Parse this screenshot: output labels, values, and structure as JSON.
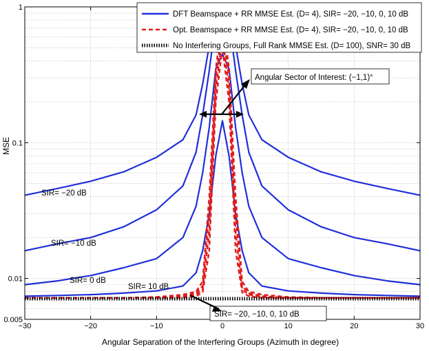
{
  "chart_data": {
    "type": "line",
    "title": "",
    "xlabel": "Angular Separation of the Interfering Groups (Azimuth in degree)",
    "ylabel": "MSE",
    "xlim": [
      -30,
      30
    ],
    "ylim": [
      0.005,
      1
    ],
    "yscale": "log",
    "xticks": [
      -30,
      -20,
      -10,
      0,
      10,
      20,
      30
    ],
    "xtick_labels": [
      "−30",
      "−20",
      "−10",
      "0",
      "10",
      "20",
      "30"
    ],
    "yticks": [
      0.005,
      0.01,
      0.1,
      1
    ],
    "ytick_labels": [
      "0.005",
      "0.01",
      "0.1",
      "1"
    ],
    "grid": true,
    "legend_position": "top-right",
    "legend": [
      "DFT Beamspace + RR MMSE Est. (D= 4), SIR= −20, −10, 0, 10 dB",
      "Opt. Beamspace + RR MMSE Est. (D= 4), SIR= −20, −10, 0, 10 dB",
      "No Interfering Groups, Full Rank MMSE Est. (D= 100), SNR= 30 dB"
    ],
    "x": [
      -30,
      -25,
      -20,
      -15,
      -10,
      -6,
      -4,
      -3,
      -2,
      -1,
      0,
      1,
      2,
      3,
      4,
      6,
      10,
      15,
      20,
      25,
      30
    ],
    "series": [
      {
        "name": "DFT SIR= −20 dB",
        "style": "solid-blue",
        "values": [
          0.041,
          0.046,
          0.052,
          0.061,
          0.078,
          0.105,
          0.16,
          0.27,
          0.52,
          1.0,
          1.0,
          1.0,
          0.52,
          0.27,
          0.16,
          0.105,
          0.078,
          0.061,
          0.052,
          0.046,
          0.041
        ]
      },
      {
        "name": "DFT SIR= −10 dB",
        "style": "solid-blue",
        "values": [
          0.016,
          0.018,
          0.02,
          0.024,
          0.032,
          0.048,
          0.085,
          0.16,
          0.34,
          0.8,
          1.0,
          0.8,
          0.34,
          0.16,
          0.085,
          0.048,
          0.032,
          0.024,
          0.02,
          0.018,
          0.016
        ]
      },
      {
        "name": "DFT SIR= 0 dB",
        "style": "solid-blue",
        "values": [
          0.009,
          0.0096,
          0.0105,
          0.012,
          0.014,
          0.02,
          0.034,
          0.06,
          0.13,
          0.35,
          0.45,
          0.35,
          0.13,
          0.06,
          0.034,
          0.02,
          0.014,
          0.012,
          0.0105,
          0.0096,
          0.009
        ]
      },
      {
        "name": "DFT SIR= 10 dB",
        "style": "solid-blue",
        "values": [
          0.0074,
          0.0075,
          0.0076,
          0.0078,
          0.0081,
          0.0088,
          0.011,
          0.016,
          0.03,
          0.08,
          0.145,
          0.08,
          0.03,
          0.016,
          0.011,
          0.0088,
          0.0081,
          0.0078,
          0.0076,
          0.0075,
          0.0074
        ]
      },
      {
        "name": "Opt. SIR= −20 dB",
        "style": "dashed-red",
        "values": [
          0.0072,
          0.0072,
          0.0072,
          0.0072,
          0.0073,
          0.0076,
          0.008,
          0.0095,
          0.04,
          0.35,
          0.85,
          0.35,
          0.04,
          0.0095,
          0.008,
          0.0076,
          0.0073,
          0.0072,
          0.0072,
          0.0072,
          0.0072
        ]
      },
      {
        "name": "Opt. SIR= −10 dB",
        "style": "dashed-red",
        "values": [
          0.0072,
          0.0072,
          0.0072,
          0.0072,
          0.0072,
          0.0074,
          0.0078,
          0.0088,
          0.03,
          0.3,
          0.7,
          0.3,
          0.03,
          0.0088,
          0.0078,
          0.0074,
          0.0072,
          0.0072,
          0.0072,
          0.0072,
          0.0072
        ]
      },
      {
        "name": "Opt. SIR= 0 dB",
        "style": "dashed-red",
        "values": [
          0.0072,
          0.0072,
          0.0072,
          0.0072,
          0.0072,
          0.0073,
          0.0076,
          0.0083,
          0.022,
          0.25,
          0.6,
          0.25,
          0.022,
          0.0083,
          0.0076,
          0.0073,
          0.0072,
          0.0072,
          0.0072,
          0.0072,
          0.0072
        ]
      },
      {
        "name": "Opt. SIR= 10 dB",
        "style": "dashed-red",
        "values": [
          0.0072,
          0.0072,
          0.0072,
          0.0072,
          0.0072,
          0.0072,
          0.0074,
          0.0079,
          0.016,
          0.2,
          0.5,
          0.2,
          0.016,
          0.0079,
          0.0074,
          0.0072,
          0.0072,
          0.0072,
          0.0072,
          0.0072,
          0.0072
        ]
      },
      {
        "name": "No Interfering Groups",
        "style": "dotted-black",
        "values": [
          0.0071,
          0.0071,
          0.0071,
          0.0071,
          0.0071,
          0.0071,
          0.0071,
          0.0071,
          0.0071,
          0.0071,
          0.0071,
          0.0071,
          0.0071,
          0.0071,
          0.0071,
          0.0071,
          0.0071,
          0.0071,
          0.0071,
          0.0071,
          0.0071
        ]
      }
    ],
    "annotations": [
      {
        "text": "Angular Sector of Interest: (−1,1)°",
        "boxed": true
      },
      {
        "text": "SIR= −20, −10, 0, 10 dB",
        "boxed": true
      },
      {
        "text": "SIR= −20 dB"
      },
      {
        "text": "SIR= −10 dB"
      },
      {
        "text": "SIR= 0 dB"
      },
      {
        "text": "SIR= 10 dB"
      }
    ]
  }
}
